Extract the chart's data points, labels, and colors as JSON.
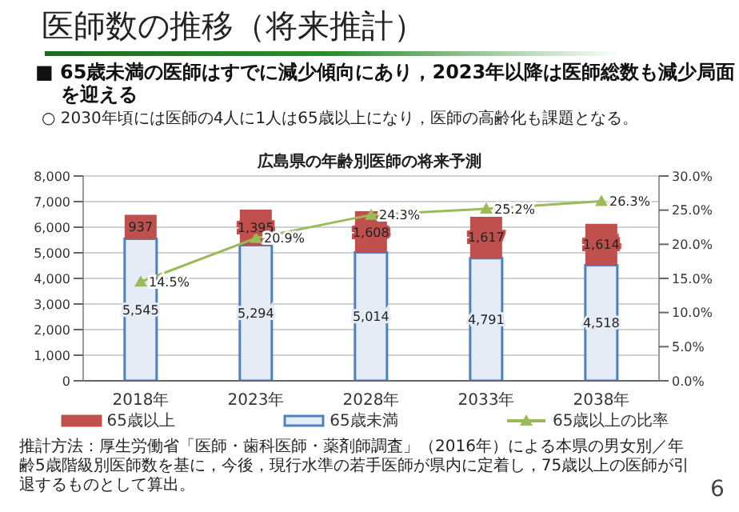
{
  "chart_data": {
    "type": "bar",
    "title": "医師数の推移（将来推計）",
    "subtitle": "広島県の年齢別医師の将来予測",
    "annotations": [
      "■ 65歳未満の医師はすでに減少傾向にあり，2023年以降は医師総数も減少局面を迎える",
      "○ 2030年頃には医師の4人に1人は65歳以上になり，医師の高齢化も課題となる。",
      "推計方法：厚生労働省「医師・歯科医師・薬剤師調査」（2016年）による本県の男女別／年齢5歳階級別医師数を基に，今後，現行水準の若手医師が県内に定着し，75歳以上の医師が引退するものとして算出。",
      "6"
    ],
    "categories": [
      "2018年",
      "2023年",
      "2028年",
      "2033年",
      "2038年"
    ],
    "stacked": true,
    "series": [
      {
        "name": "65歳未満",
        "color": "#4f81bd",
        "values": [
          5545,
          5294,
          5014,
          4791,
          4518
        ],
        "value_labels": [
          "5,545",
          "5,294",
          "5,014",
          "4,791",
          "4,518"
        ]
      },
      {
        "name": "65歳以上",
        "color": "#c0504d",
        "values": [
          937,
          1395,
          1608,
          1617,
          1614
        ],
        "value_labels": [
          "937",
          "1,395",
          "1,608",
          "1,617",
          "1,614"
        ]
      },
      {
        "name": "65歳以上の比率",
        "type": "line",
        "axis": "y2",
        "color": "#9bbb59",
        "marker": "triangle",
        "values": [
          14.5,
          20.9,
          24.3,
          25.2,
          26.3
        ],
        "value_labels": [
          "14.5%",
          "20.9%",
          "24.3%",
          "25.2%",
          "26.3%"
        ]
      }
    ],
    "ylim": [
      0,
      8000
    ],
    "yticks": [
      0,
      {
        "value": 1000,
        "label": "1,000"
      },
      {
        "value": 2000,
        "label": "2,000"
      },
      {
        "value": 3000,
        "label": "3,000"
      },
      {
        "value": 4000,
        "label": "4,000"
      },
      {
        "value": 5000,
        "label": "5,000"
      },
      {
        "value": 6000,
        "label": "6,000"
      },
      {
        "value": 7000,
        "label": "7,000"
      },
      {
        "value": 8000,
        "label": "8,000"
      }
    ],
    "y2lim": [
      0,
      30
    ],
    "y2ticks": [
      {
        "value": 0,
        "label": "0.0%"
      },
      {
        "value": 5,
        "label": "5.0%"
      },
      {
        "value": 10,
        "label": "10.0%"
      },
      {
        "value": 15,
        "label": "15.0%"
      },
      {
        "value": 20,
        "label": "20.0%"
      },
      {
        "value": 25,
        "label": "25.0%"
      },
      {
        "value": 30,
        "label": "30.0%"
      }
    ],
    "grid": "y",
    "legend": "bottom"
  }
}
